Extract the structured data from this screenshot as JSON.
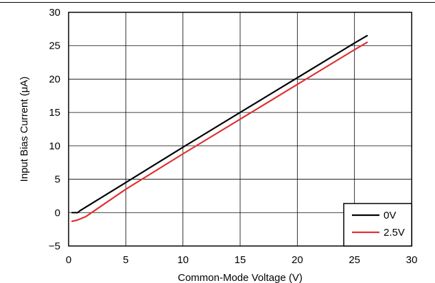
{
  "chart_data": {
    "type": "line",
    "xlabel": "Common-Mode Voltage (V)",
    "ylabel": "Input Bias Current (μA)",
    "xlim": [
      0,
      30
    ],
    "ylim": [
      -5,
      30
    ],
    "x_ticks": [
      "0",
      "5",
      "10",
      "15",
      "20",
      "25",
      "30"
    ],
    "y_ticks": [
      "−5",
      "0",
      "5",
      "10",
      "15",
      "20",
      "25",
      "30"
    ],
    "grid": true,
    "legend_position": "bottom-right",
    "series": [
      {
        "name": "0V",
        "color": "#000000",
        "x": [
          0.3,
          0.8,
          1.0,
          5,
          10,
          15,
          20,
          25,
          26.1
        ],
        "y": [
          0.0,
          0.0,
          0.3,
          4.5,
          9.8,
          15.0,
          20.2,
          25.4,
          26.5
        ]
      },
      {
        "name": "2.5V",
        "color": "#e03030",
        "x": [
          0.3,
          0.8,
          1.5,
          5,
          10,
          15,
          20,
          25,
          26.1
        ],
        "y": [
          -1.3,
          -1.1,
          -0.6,
          3.5,
          8.8,
          14.0,
          19.2,
          24.4,
          25.5
        ]
      }
    ]
  }
}
